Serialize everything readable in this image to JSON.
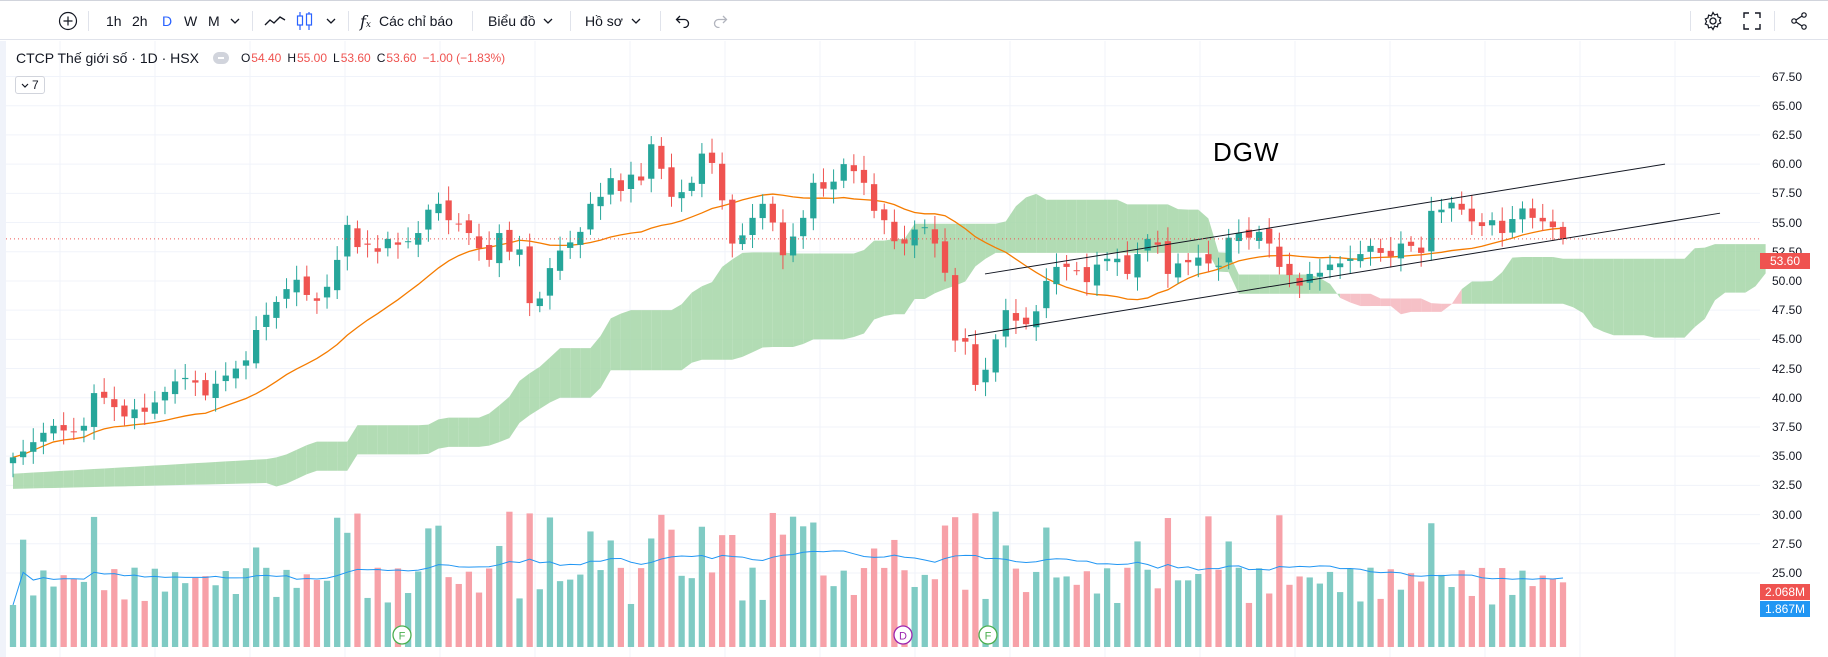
{
  "toolbar": {
    "intervals": [
      "1h",
      "2h",
      "D",
      "W",
      "M"
    ],
    "active_interval": "D",
    "indicators_label": "Các chỉ báo",
    "chart_label": "Biểu đồ",
    "profile_label": "Hồ sơ"
  },
  "legend": {
    "symbol": "CTCP Thế giới số · 1D · HSX",
    "o_label": "O",
    "o_value": "54.40",
    "h_label": "H",
    "h_value": "55.00",
    "l_label": "L",
    "l_value": "53.60",
    "c_label": "C",
    "c_value": "53.60",
    "change": "−1.00 (−1.83%)",
    "collapsed_count": "7"
  },
  "annotation_text": "DGW",
  "price_badge": "53.60",
  "vol_badge_1": "2.068M",
  "vol_badge_2": "1.867M",
  "event_markers": [
    "F",
    "D",
    "F"
  ],
  "colors": {
    "up": "#26a69a",
    "down": "#ef5350",
    "up_vol": "#80cbc4",
    "down_vol": "#f7a1a8",
    "ma": "#f57c00",
    "cloud_bull": "#a5d6a7",
    "cloud_bear": "#f4b6bd",
    "vol_ma": "#2196f3"
  },
  "chart_data": {
    "type": "candlestick",
    "yticks": [
      "67.50",
      "65.00",
      "62.50",
      "60.00",
      "57.50",
      "55.00",
      "52.50",
      "50.00",
      "47.50",
      "45.00",
      "42.50",
      "40.00",
      "37.50",
      "35.00",
      "32.50",
      "30.00",
      "27.50",
      "25.00"
    ],
    "ylim": [
      25.0,
      67.5
    ],
    "close": [
      34.9,
      35.4,
      36.2,
      37.0,
      37.6,
      37.2,
      37.1,
      37.6,
      40.4,
      40.0,
      39.2,
      38.4,
      39.0,
      38.8,
      39.6,
      40.5,
      41.4,
      41.7,
      41.3,
      40.2,
      41.2,
      41.9,
      42.5,
      43.2,
      45.8,
      47.1,
      48.2,
      49.3,
      50.1,
      48.8,
      48.3,
      49.5,
      51.8,
      54.8,
      52.9,
      53.1,
      52.5,
      53.6,
      53.1,
      53.4,
      54.1,
      56.1,
      56.6,
      55.2,
      54.9,
      54.1,
      52.8,
      51.8,
      54.1,
      52.5,
      52.7,
      48.1,
      48.5,
      51.1,
      52.6,
      53.3,
      54.2,
      56.6,
      57.2,
      58.8,
      57.7,
      59.1,
      58.6,
      61.7,
      59.6,
      57.2,
      57.6,
      58.4,
      60.9,
      60.1,
      56.9,
      53.2,
      53.9,
      55.4,
      56.6,
      55.0,
      52.2,
      53.8,
      55.4,
      58.4,
      57.9,
      58.5,
      60.0,
      59.4,
      58.4,
      56.0,
      55.2,
      53.4,
      53.2,
      54.4,
      54.6,
      53.2,
      50.7,
      44.9,
      44.8,
      41.1,
      42.4,
      45.0,
      47.5,
      46.6,
      46.3,
      47.4,
      50.0,
      51.2,
      51.2,
      50.9,
      49.9,
      51.4,
      51.9,
      51.9,
      50.6,
      52.3,
      53.6,
      53.1,
      50.6,
      51.5,
      51.6,
      52.0,
      51.5,
      51.3,
      53.7,
      54.1,
      53.7,
      54.2,
      53.2,
      51.2,
      50.5,
      49.6,
      50.6,
      50.7,
      51.4,
      51.5,
      51.9,
      52.3,
      53.0,
      52.4,
      52.1,
      53.2,
      53.0,
      52.4,
      56.0,
      56.1,
      56.7,
      56.1,
      55.1,
      54.7,
      55.2,
      54.1,
      55.3,
      56.2,
      55.4,
      55.1,
      54.6,
      53.6
    ],
    "volume_max": 1.0,
    "vol_tick_labels": []
  }
}
